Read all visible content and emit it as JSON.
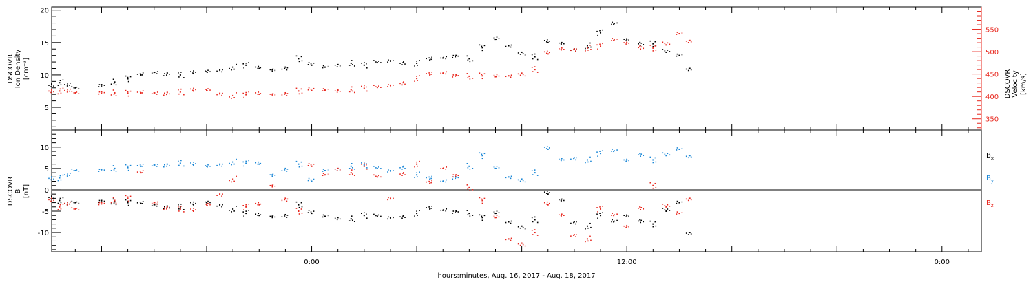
{
  "xlabel": "hours:minutes, Aug. 16, 2017 - Aug. 18, 2017",
  "x_ticks": [
    {
      "hour": 24,
      "label": "0:00"
    },
    {
      "hour": 36,
      "label": "12:00"
    },
    {
      "hour": 48,
      "label": "0:00"
    }
  ],
  "chart_data": [
    {
      "type": "scatter",
      "panel": "top",
      "ylabel_left": [
        "DSCOVR",
        "Ion Density",
        "[cm⁻³]"
      ],
      "ylabel_right": [
        "DSCOVR",
        "Velocity",
        "[km/s]"
      ],
      "xlim_hours": [
        14.1,
        49.5
      ],
      "ylim_left": [
        1.5,
        20.5
      ],
      "ylim_right": [
        325,
        600
      ],
      "left_ticks": [
        5,
        10,
        15,
        20
      ],
      "right_ticks": [
        350,
        400,
        450,
        500,
        550
      ],
      "series": [
        {
          "key": "density",
          "axis": "left",
          "color": "#000000",
          "x_hours": [
            14.1,
            14.4,
            14.7,
            15.0,
            16.0,
            16.5,
            17.0,
            17.5,
            18.0,
            18.5,
            19.0,
            19.5,
            20.0,
            20.5,
            21.0,
            21.5,
            22.0,
            22.5,
            23.0,
            23.5,
            24.0,
            24.5,
            25.0,
            25.5,
            26.0,
            26.5,
            27.0,
            27.5,
            28.0,
            28.5,
            29.0,
            29.5,
            30.0,
            30.5,
            31.0,
            31.5,
            32.0,
            32.5,
            33.0,
            33.5,
            34.0,
            34.5,
            35.0,
            35.5,
            36.0,
            36.5,
            37.0,
            37.5,
            38.0,
            38.4
          ],
          "values": [
            8.6,
            8.8,
            8.3,
            8.0,
            8.5,
            8.9,
            9.4,
            10.0,
            10.4,
            10.3,
            10.0,
            10.2,
            10.5,
            10.8,
            11.2,
            11.5,
            11.0,
            10.8,
            11.2,
            12.5,
            11.5,
            11.2,
            11.6,
            11.8,
            11.5,
            11.9,
            12.2,
            12.0,
            11.8,
            12.3,
            12.6,
            13.0,
            12.5,
            14.2,
            15.5,
            14.5,
            13.5,
            12.8,
            15.0,
            14.8,
            14.0,
            14.5,
            16.5,
            17.8,
            15.5,
            15.0,
            14.8,
            13.5,
            13.0,
            11.0
          ]
        },
        {
          "key": "velocity",
          "axis": "right",
          "color": "#e8271e",
          "x_hours": [
            14.1,
            14.4,
            14.7,
            15.0,
            16.0,
            16.5,
            17.0,
            17.5,
            18.0,
            18.5,
            19.0,
            19.5,
            20.0,
            20.5,
            21.0,
            21.5,
            22.0,
            22.5,
            23.0,
            23.5,
            24.0,
            24.5,
            25.0,
            25.5,
            26.0,
            26.5,
            27.0,
            27.5,
            28.0,
            28.5,
            29.0,
            29.5,
            30.0,
            30.5,
            31.0,
            31.5,
            32.0,
            32.5,
            33.0,
            33.5,
            34.0,
            34.5,
            35.0,
            35.5,
            36.0,
            36.5,
            37.0,
            37.5,
            38.0,
            38.4
          ],
          "values": [
            415,
            412,
            410,
            408,
            410,
            408,
            407,
            408,
            408,
            409,
            410,
            412,
            414,
            407,
            402,
            404,
            405,
            405,
            408,
            412,
            413,
            414,
            414,
            415,
            418,
            420,
            425,
            432,
            440,
            448,
            452,
            448,
            445,
            446,
            444,
            446,
            452,
            460,
            495,
            505,
            506,
            508,
            512,
            525,
            520,
            512,
            508,
            515,
            540,
            525
          ]
        }
      ]
    },
    {
      "type": "scatter",
      "panel": "bottom",
      "ylabel_left": [
        "DSCOVR",
        "B",
        "[nT]"
      ],
      "xlim_hours": [
        14.1,
        49.5
      ],
      "ylim": [
        -14.5,
        14
      ],
      "left_ticks": [
        -10,
        -5,
        0,
        5,
        10
      ],
      "zero_line": true,
      "series": [
        {
          "key": "bx",
          "name": "B",
          "sub": "x",
          "color": "#000000",
          "x_hours": [
            14.1,
            14.4,
            14.7,
            15.0,
            16.0,
            16.5,
            17.0,
            17.5,
            18.0,
            18.5,
            19.0,
            19.5,
            20.0,
            20.5,
            21.0,
            21.5,
            22.0,
            22.5,
            23.0,
            23.5,
            24.0,
            24.5,
            25.0,
            25.5,
            26.0,
            26.5,
            27.0,
            27.5,
            28.0,
            28.5,
            29.0,
            29.5,
            30.0,
            30.5,
            31.0,
            31.5,
            32.0,
            32.5,
            33.0,
            33.5,
            34.0,
            34.5,
            35.0,
            35.5,
            36.0,
            36.5,
            37.0,
            37.5,
            38.0,
            38.4
          ],
          "values": [
            -1.5,
            -2.5,
            -3.5,
            -3.0,
            -2.5,
            -2.8,
            -3.0,
            -3.2,
            -3.5,
            -3.8,
            -4.0,
            -3.5,
            -3.0,
            -3.5,
            -4.5,
            -5.5,
            -6.0,
            -6.2,
            -5.8,
            -3.5,
            -5.5,
            -6.2,
            -6.5,
            -6.8,
            -6.0,
            -6.2,
            -6.5,
            -6.0,
            -5.5,
            -4.5,
            -4.8,
            -5.0,
            -5.5,
            -6.5,
            -5.5,
            -7.5,
            -8.5,
            -7.0,
            -1.0,
            -2.5,
            -7.5,
            -8.5,
            -6.0,
            -7.5,
            -6.0,
            -7.0,
            -8.0,
            -5.0,
            -3.0,
            -10.0
          ]
        },
        {
          "key": "by",
          "name": "B",
          "sub": "y",
          "color": "#1b87d6",
          "x_hours": [
            14.1,
            14.4,
            14.7,
            15.0,
            16.0,
            16.5,
            17.0,
            17.5,
            18.0,
            18.5,
            19.0,
            19.5,
            20.0,
            20.5,
            21.0,
            21.5,
            22.0,
            22.5,
            23.0,
            23.5,
            24.0,
            24.5,
            25.0,
            25.5,
            26.0,
            26.5,
            27.0,
            27.5,
            28.0,
            28.5,
            29.0,
            29.5,
            30.0,
            30.5,
            31.0,
            31.5,
            32.0,
            32.5,
            33.0,
            33.5,
            34.0,
            34.5,
            35.0,
            35.5,
            36.0,
            36.5,
            37.0,
            37.5,
            38.0,
            38.4
          ],
          "values": [
            3.0,
            2.8,
            3.2,
            4.5,
            4.8,
            5.0,
            5.2,
            5.5,
            5.8,
            6.0,
            6.2,
            5.8,
            5.5,
            6.0,
            6.5,
            6.2,
            6.0,
            3.5,
            5.0,
            6.0,
            2.0,
            4.5,
            5.0,
            5.5,
            5.8,
            5.0,
            4.5,
            5.5,
            3.5,
            2.5,
            2.0,
            3.0,
            5.5,
            8.0,
            5.0,
            3.0,
            2.5,
            4.0,
            9.5,
            7.0,
            7.5,
            7.0,
            8.5,
            9.0,
            7.0,
            8.5,
            7.0,
            8.0,
            9.5,
            8.0
          ]
        },
        {
          "key": "bz",
          "name": "B",
          "sub": "z",
          "color": "#e8271e",
          "x_hours": [
            14.1,
            14.4,
            14.7,
            15.0,
            16.0,
            16.5,
            17.0,
            17.5,
            18.0,
            18.5,
            19.0,
            19.5,
            20.0,
            20.5,
            21.0,
            21.5,
            22.0,
            22.5,
            23.0,
            23.5,
            24.0,
            24.5,
            25.0,
            25.5,
            26.0,
            26.5,
            27.0,
            27.5,
            28.0,
            28.5,
            29.0,
            29.5,
            30.0,
            30.5,
            31.0,
            31.5,
            32.0,
            32.5,
            33.0,
            33.5,
            34.0,
            34.5,
            35.0,
            35.5,
            36.0,
            36.5,
            37.0,
            37.5,
            38.0,
            38.4
          ],
          "values": [
            -2.0,
            -4.0,
            -3.5,
            -4.5,
            -3.0,
            -2.5,
            -2.0,
            4.0,
            -3.0,
            -4.0,
            -4.5,
            -5.0,
            -3.5,
            -1.0,
            2.5,
            -4.0,
            -3.5,
            1.0,
            -2.0,
            -5.0,
            5.5,
            3.5,
            5.0,
            4.0,
            5.5,
            3.0,
            -2.0,
            4.0,
            6.0,
            1.5,
            5.0,
            3.5,
            0.5,
            -2.5,
            -6.5,
            -11.5,
            -12.5,
            -10.0,
            -3.5,
            -6.0,
            -10.5,
            -11.5,
            -4.5,
            -6.0,
            -8.5,
            -4.0,
            1.0,
            -4.0,
            -5.5,
            -2.0
          ]
        }
      ]
    }
  ]
}
